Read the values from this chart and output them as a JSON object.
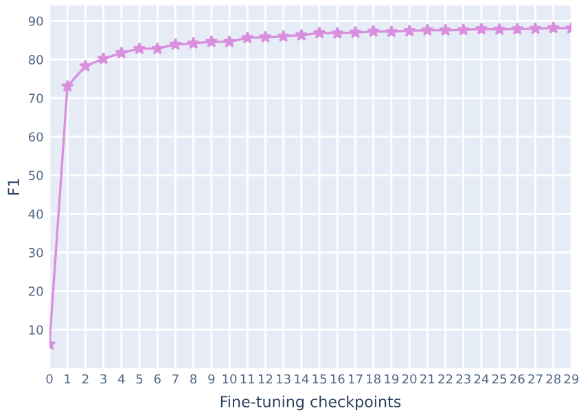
{
  "chart_data": {
    "type": "line",
    "xlabel": "Fine-tuning checkpoints",
    "ylabel": "F1",
    "x": [
      0,
      1,
      2,
      3,
      4,
      5,
      6,
      7,
      8,
      9,
      10,
      11,
      12,
      13,
      14,
      15,
      16,
      17,
      18,
      19,
      20,
      21,
      22,
      23,
      24,
      25,
      26,
      27,
      28,
      29
    ],
    "series": [
      {
        "color": "#d98fde",
        "values": [
          6.2,
          73.1,
          78.3,
          80.2,
          81.7,
          82.8,
          82.8,
          83.9,
          84.2,
          84.6,
          84.6,
          85.6,
          85.8,
          86.0,
          86.3,
          86.9,
          86.8,
          87.0,
          87.3,
          87.2,
          87.4,
          87.6,
          87.6,
          87.7,
          87.9,
          87.8,
          87.9,
          88.0,
          88.2,
          88.1
        ]
      }
    ],
    "xlim": [
      0,
      29
    ],
    "xticks": [
      0,
      1,
      2,
      3,
      4,
      5,
      6,
      7,
      8,
      9,
      10,
      11,
      12,
      13,
      14,
      15,
      16,
      17,
      18,
      19,
      20,
      21,
      22,
      23,
      24,
      25,
      26,
      27,
      28,
      29
    ],
    "ylim": [
      0,
      94
    ],
    "yticks": [
      10,
      20,
      30,
      40,
      50,
      60,
      70,
      80,
      90
    ],
    "grid": true,
    "marker": "star",
    "line_style": "solid"
  }
}
